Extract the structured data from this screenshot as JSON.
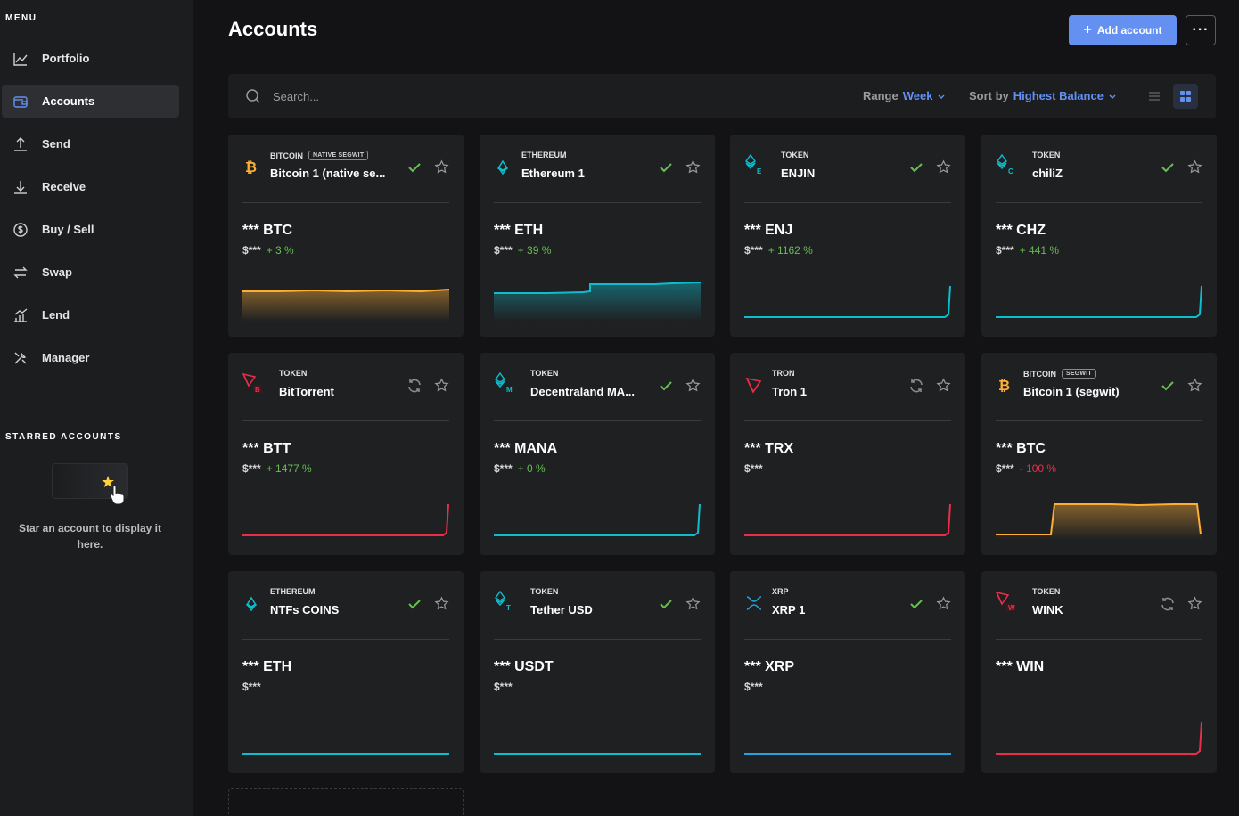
{
  "sidebar": {
    "menu_label": "MENU",
    "items": [
      {
        "label": "Portfolio",
        "icon": "chart-line-icon"
      },
      {
        "label": "Accounts",
        "icon": "wallet-icon",
        "active": true
      },
      {
        "label": "Send",
        "icon": "send-icon"
      },
      {
        "label": "Receive",
        "icon": "receive-icon"
      },
      {
        "label": "Buy / Sell",
        "icon": "dollar-icon"
      },
      {
        "label": "Swap",
        "icon": "swap-icon"
      },
      {
        "label": "Lend",
        "icon": "lend-icon"
      },
      {
        "label": "Manager",
        "icon": "tools-icon"
      }
    ],
    "starred_label": "STARRED ACCOUNTS",
    "starred_empty": "Star an account to display it here."
  },
  "header": {
    "title": "Accounts",
    "add_button": "Add account",
    "more_label": "···"
  },
  "toolbar": {
    "search_placeholder": "Search...",
    "range_label": "Range",
    "range_value": "Week",
    "sort_label": "Sort by",
    "sort_value": "Highest Balance"
  },
  "colors": {
    "accent": "#6490f1",
    "positive": "#66be54",
    "negative": "#ea2e49",
    "bitcoin": "#ffae35",
    "ethereum": "#0ebdcd",
    "tron": "#d9012c",
    "xrp": "#27a2db"
  },
  "cards": [
    {
      "category": "BITCOIN",
      "tag": "NATIVE SEGWIT",
      "name": "Bitcoin 1 (native se...",
      "balance": "*** BTC",
      "fiat": "$***",
      "change": "+ 3 %",
      "dir": "up",
      "status": "check",
      "icon": "bitcoin-icon",
      "color": "#ffae35",
      "chart": "flat-high"
    },
    {
      "category": "ETHEREUM",
      "tag": "",
      "name": "Ethereum 1",
      "balance": "*** ETH",
      "fiat": "$***",
      "change": "+ 39 %",
      "dir": "up",
      "status": "check",
      "icon": "ethereum-icon",
      "color": "#0ebdcd",
      "chart": "step"
    },
    {
      "category": "TOKEN",
      "tag": "",
      "name": "ENJIN",
      "balance": "*** ENJ",
      "fiat": "$***",
      "change": "+ 1162 %",
      "dir": "up",
      "status": "check",
      "icon": "ethereum-token-icon",
      "sub_letter": "E",
      "color": "#0ebdcd",
      "chart": "spike"
    },
    {
      "category": "TOKEN",
      "tag": "",
      "name": "chiliZ",
      "balance": "*** CHZ",
      "fiat": "$***",
      "change": "+ 441 %",
      "dir": "up",
      "status": "check",
      "icon": "ethereum-token-icon",
      "sub_letter": "C",
      "color": "#0ebdcd",
      "chart": "spike"
    },
    {
      "category": "TOKEN",
      "tag": "",
      "name": "BitTorrent",
      "balance": "*** BTT",
      "fiat": "$***",
      "change": "+ 1477 %",
      "dir": "up",
      "status": "sync",
      "icon": "tron-token-icon",
      "sub_letter": "B",
      "color": "#ea2e49",
      "chart": "spike"
    },
    {
      "category": "TOKEN",
      "tag": "",
      "name": "Decentraland MA...",
      "balance": "*** MANA",
      "fiat": "$***",
      "change": "+ 0 %",
      "dir": "up",
      "status": "check",
      "icon": "ethereum-token-icon",
      "sub_letter": "M",
      "color": "#0ebdcd",
      "chart": "spike"
    },
    {
      "category": "TRON",
      "tag": "",
      "name": "Tron 1",
      "balance": "*** TRX",
      "fiat": "$***",
      "change": "",
      "dir": "up",
      "status": "sync",
      "icon": "tron-icon",
      "color": "#ea2e49",
      "chart": "spike"
    },
    {
      "category": "BITCOIN",
      "tag": "SEGWIT",
      "name": "Bitcoin 1 (segwit)",
      "balance": "*** BTC",
      "fiat": "$***",
      "change": "- 100 %",
      "dir": "down",
      "status": "check",
      "icon": "bitcoin-icon",
      "color": "#ffae35",
      "chart": "plateau"
    },
    {
      "category": "ETHEREUM",
      "tag": "",
      "name": "NTFs COINS",
      "balance": "*** ETH",
      "fiat": "$***",
      "change": "",
      "dir": "up",
      "status": "check",
      "icon": "ethereum-icon",
      "color": "#0ebdcd",
      "chart": "zero"
    },
    {
      "category": "TOKEN",
      "tag": "",
      "name": "Tether USD",
      "balance": "*** USDT",
      "fiat": "$***",
      "change": "",
      "dir": "up",
      "status": "check",
      "icon": "ethereum-token-icon",
      "sub_letter": "T",
      "color": "#0ebdcd",
      "chart": "zero"
    },
    {
      "category": "XRP",
      "tag": "",
      "name": "XRP 1",
      "balance": "*** XRP",
      "fiat": "$***",
      "change": "",
      "dir": "up",
      "status": "check",
      "icon": "xrp-icon",
      "color": "#27a2db",
      "chart": "zero"
    },
    {
      "category": "TOKEN",
      "tag": "",
      "name": "WINK",
      "balance": "*** WIN",
      "fiat": "",
      "change": "",
      "dir": "up",
      "status": "sync",
      "icon": "tron-token-icon",
      "sub_letter": "W",
      "color": "#ea2e49",
      "chart": "spike"
    }
  ]
}
